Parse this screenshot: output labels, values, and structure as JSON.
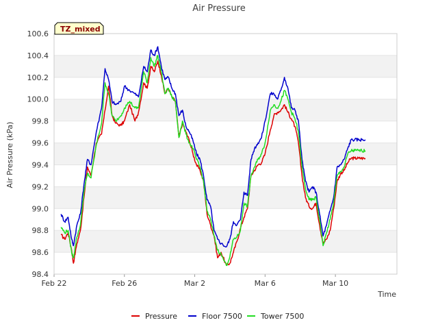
{
  "chart_data": {
    "type": "line",
    "title": "Air Pressure",
    "badge": "TZ_mixed",
    "xlabel": "Time",
    "ylabel": "Air Pressure (kPa)",
    "xlim": [
      0,
      19.5
    ],
    "ylim": [
      98.4,
      100.6
    ],
    "yticks": [
      98.4,
      98.6,
      98.8,
      99.0,
      99.2,
      99.4,
      99.6,
      99.8,
      100.0,
      100.2,
      100.4,
      100.6
    ],
    "ytick_labels": [
      "98.4",
      "98.6",
      "98.8",
      "99.0",
      "99.2",
      "99.4",
      "99.6",
      "99.8",
      "100.0",
      "100.2",
      "100.4",
      "100.6"
    ],
    "xticks": [
      {
        "day": 0,
        "label": "Feb 22"
      },
      {
        "day": 4,
        "label": "Feb 26"
      },
      {
        "day": 8,
        "label": "Mar 2"
      },
      {
        "day": 12,
        "label": "Mar 6"
      },
      {
        "day": 16,
        "label": "Mar 10"
      }
    ],
    "x_unit": "days since Feb 22",
    "series": [
      {
        "name": "Pressure",
        "color": "#dd0000",
        "x": [
          0.4,
          0.6,
          0.8,
          1.0,
          1.1,
          1.3,
          1.5,
          1.7,
          1.9,
          2.1,
          2.4,
          2.7,
          2.9,
          3.1,
          3.3,
          3.5,
          3.8,
          4.0,
          4.3,
          4.6,
          4.8,
          5.1,
          5.3,
          5.5,
          5.7,
          5.9,
          6.1,
          6.3,
          6.5,
          6.7,
          6.9,
          7.1,
          7.3,
          7.5,
          7.7,
          7.9,
          8.1,
          8.3,
          8.5,
          8.7,
          8.9,
          9.1,
          9.3,
          9.5,
          9.8,
          10.0,
          10.2,
          10.4,
          10.6,
          10.8,
          11.0,
          11.2,
          11.4,
          11.6,
          11.8,
          12.0,
          12.3,
          12.5,
          12.7,
          12.9,
          13.1,
          13.3,
          13.5,
          13.7,
          13.9,
          14.1,
          14.3,
          14.5,
          14.7,
          14.9,
          15.1,
          15.3,
          15.5,
          15.7,
          15.9,
          16.1,
          16.3,
          16.5,
          16.7,
          16.9,
          17.1,
          17.3,
          17.5,
          17.7
        ],
        "values": [
          98.76,
          98.72,
          98.78,
          98.62,
          98.5,
          98.68,
          98.8,
          99.1,
          99.38,
          99.3,
          99.6,
          99.68,
          99.9,
          100.12,
          99.85,
          99.78,
          99.76,
          99.8,
          99.95,
          99.8,
          99.88,
          100.15,
          100.1,
          100.3,
          100.25,
          100.35,
          100.22,
          100.05,
          100.1,
          100.02,
          99.98,
          99.65,
          99.78,
          99.7,
          99.62,
          99.5,
          99.4,
          99.35,
          99.25,
          98.95,
          98.85,
          98.75,
          98.55,
          98.6,
          98.48,
          98.5,
          98.6,
          98.7,
          98.82,
          98.92,
          99.0,
          99.3,
          99.35,
          99.4,
          99.42,
          99.5,
          99.72,
          99.85,
          99.88,
          99.9,
          99.95,
          99.88,
          99.82,
          99.75,
          99.6,
          99.3,
          99.1,
          99.02,
          99.0,
          99.05,
          98.85,
          98.68,
          98.72,
          98.8,
          99.0,
          99.25,
          99.32,
          99.35,
          99.42,
          99.46,
          99.46,
          99.46,
          99.46,
          99.46
        ]
      },
      {
        "name": "Floor 7500",
        "color": "#0000cc",
        "x": [
          0.4,
          0.6,
          0.8,
          1.0,
          1.1,
          1.3,
          1.5,
          1.7,
          1.9,
          2.1,
          2.4,
          2.7,
          2.9,
          3.1,
          3.3,
          3.5,
          3.8,
          4.0,
          4.3,
          4.6,
          4.8,
          5.1,
          5.3,
          5.5,
          5.7,
          5.9,
          6.1,
          6.3,
          6.5,
          6.7,
          6.9,
          7.1,
          7.3,
          7.5,
          7.7,
          7.9,
          8.1,
          8.3,
          8.5,
          8.7,
          8.9,
          9.1,
          9.3,
          9.5,
          9.8,
          10.0,
          10.2,
          10.4,
          10.6,
          10.8,
          11.0,
          11.2,
          11.4,
          11.6,
          11.8,
          12.0,
          12.3,
          12.5,
          12.7,
          12.9,
          13.1,
          13.3,
          13.5,
          13.7,
          13.9,
          14.1,
          14.3,
          14.5,
          14.7,
          14.9,
          15.1,
          15.3,
          15.5,
          15.7,
          15.9,
          16.1,
          16.3,
          16.5,
          16.7,
          16.9,
          17.1,
          17.3,
          17.5,
          17.7
        ],
        "values": [
          98.95,
          98.88,
          98.92,
          98.72,
          98.66,
          98.85,
          98.95,
          99.22,
          99.45,
          99.4,
          99.7,
          99.92,
          100.28,
          100.18,
          99.98,
          99.95,
          99.98,
          100.12,
          100.08,
          100.05,
          100.02,
          100.3,
          100.25,
          100.45,
          100.4,
          100.48,
          100.3,
          100.18,
          100.2,
          100.1,
          100.05,
          99.85,
          99.9,
          99.75,
          99.7,
          99.62,
          99.5,
          99.45,
          99.3,
          99.08,
          99.02,
          98.8,
          98.72,
          98.68,
          98.65,
          98.72,
          98.88,
          98.85,
          98.9,
          99.15,
          99.12,
          99.45,
          99.55,
          99.6,
          99.65,
          99.8,
          100.05,
          100.05,
          100.0,
          100.08,
          100.2,
          100.1,
          99.92,
          99.9,
          99.8,
          99.45,
          99.25,
          99.15,
          99.2,
          99.15,
          98.95,
          98.75,
          98.85,
          98.98,
          99.1,
          99.38,
          99.4,
          99.45,
          99.55,
          99.63,
          99.63,
          99.63,
          99.63,
          99.63
        ]
      },
      {
        "name": "Tower 7500",
        "color": "#22dd22",
        "x": [
          0.4,
          0.6,
          0.8,
          1.0,
          1.1,
          1.3,
          1.5,
          1.7,
          1.9,
          2.1,
          2.4,
          2.7,
          2.9,
          3.1,
          3.3,
          3.5,
          3.8,
          4.0,
          4.3,
          4.6,
          4.8,
          5.1,
          5.3,
          5.5,
          5.7,
          5.9,
          6.1,
          6.3,
          6.5,
          6.7,
          6.9,
          7.1,
          7.3,
          7.5,
          7.7,
          7.9,
          8.1,
          8.3,
          8.5,
          8.7,
          8.9,
          9.1,
          9.3,
          9.5,
          9.8,
          10.0,
          10.2,
          10.4,
          10.6,
          10.8,
          11.0,
          11.2,
          11.4,
          11.6,
          11.8,
          12.0,
          12.3,
          12.5,
          12.7,
          12.9,
          13.1,
          13.3,
          13.5,
          13.7,
          13.9,
          14.1,
          14.3,
          14.5,
          14.7,
          14.9,
          15.1,
          15.3,
          15.5,
          15.7,
          15.9,
          16.1,
          16.3,
          16.5,
          16.7,
          16.9,
          17.1,
          17.3,
          17.5,
          17.7
        ],
        "values": [
          98.83,
          98.78,
          98.8,
          98.6,
          98.55,
          98.74,
          98.85,
          99.15,
          99.32,
          99.28,
          99.58,
          99.78,
          100.15,
          100.05,
          99.85,
          99.8,
          99.85,
          99.92,
          99.98,
          99.92,
          99.92,
          100.25,
          100.15,
          100.38,
          100.3,
          100.4,
          100.25,
          100.05,
          100.1,
          100.02,
          99.98,
          99.65,
          99.8,
          99.68,
          99.6,
          99.55,
          99.45,
          99.38,
          99.25,
          98.98,
          98.9,
          98.75,
          98.62,
          98.58,
          98.48,
          98.56,
          98.72,
          98.74,
          98.8,
          99.05,
          99.02,
          99.3,
          99.38,
          99.45,
          99.5,
          99.6,
          99.9,
          99.95,
          99.92,
          99.98,
          100.08,
          100.0,
          99.88,
          99.82,
          99.7,
          99.38,
          99.18,
          99.08,
          99.08,
          99.1,
          98.9,
          98.66,
          98.78,
          98.9,
          99.05,
          99.3,
          99.34,
          99.38,
          99.5,
          99.53,
          99.53,
          99.53,
          99.53,
          99.53
        ]
      }
    ],
    "legend_position": "bottom-center",
    "grid": "horizontal alternating bands"
  }
}
